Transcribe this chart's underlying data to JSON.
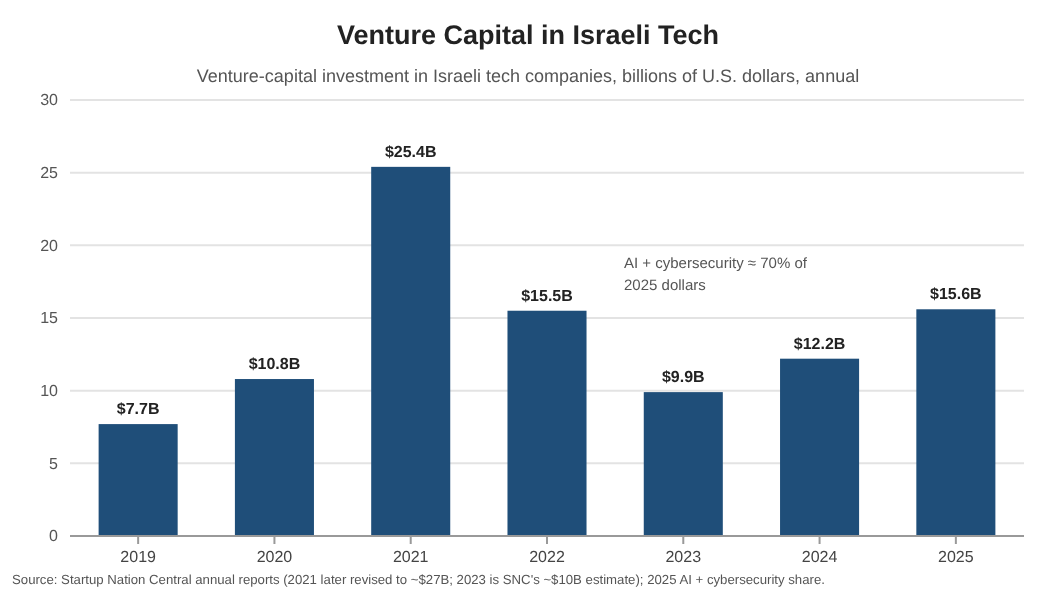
{
  "chart_data": {
    "type": "bar",
    "title": "Venture Capital in Israeli Tech",
    "subtitle": "Venture-capital investment in Israeli tech companies, billions of U.S. dollars, annual",
    "categories": [
      "2019",
      "2020",
      "2021",
      "2022",
      "2023",
      "2024",
      "2025"
    ],
    "values": [
      7.7,
      10.8,
      25.4,
      15.5,
      9.9,
      12.2,
      15.6
    ],
    "value_labels": [
      "$7.7B",
      "$10.8B",
      "$25.4B",
      "$15.5B",
      "$9.9B",
      "$12.2B",
      "$15.6B"
    ],
    "color": "#1f4e79",
    "ylim": [
      0,
      30
    ],
    "yticks": [
      0,
      5,
      10,
      15,
      20,
      25,
      30
    ],
    "grid": "y",
    "annotations": [
      "AI + cybersecurity ≈ 70% of\n2025 dollars",
      "Source: Startup Nation Central annual reports (2021 later revised to ~$27B; 2023 is SNC's ~$10B estimate); 2025 AI + cybersecurity share."
    ]
  }
}
